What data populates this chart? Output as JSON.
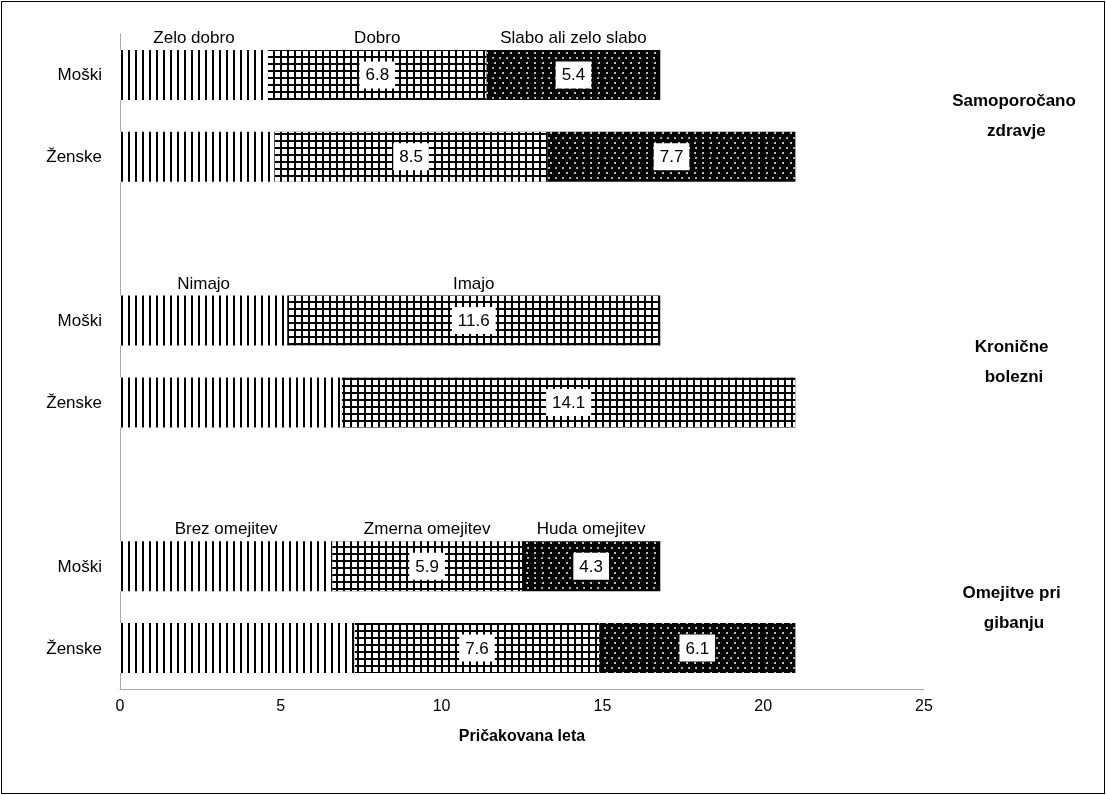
{
  "chart_data": {
    "type": "bar",
    "orientation": "horizontal",
    "stacked": true,
    "xlabel": "Pričakovana leta",
    "categories": [
      "Moški",
      "Ženske",
      null,
      "Moški",
      "Ženske",
      null,
      "Moški",
      "Ženske"
    ],
    "xlim": [
      0,
      25
    ],
    "xticks": [
      0,
      5,
      10,
      15,
      20,
      25
    ],
    "grid": false,
    "legend": false,
    "annotations": [
      "Samoporočano zdravje",
      "Kronične bolezni",
      "Omejitve pri gibanju"
    ],
    "series": [
      {
        "name": "Zelo dobro",
        "color": "#ffffff",
        "values": [
          4.6,
          4.8,
          null,
          null,
          null,
          null,
          null,
          null
        ]
      },
      {
        "name": "Dobro",
        "color": "#000000",
        "values": [
          6.8,
          8.5,
          null,
          null,
          null,
          null,
          null,
          null
        ],
        "value_labels": [
          "6.8",
          "8.5",
          null,
          null,
          null,
          null,
          null,
          null
        ]
      },
      {
        "name": "Slabo ali zelo slabo",
        "color": "#000000",
        "values": [
          5.4,
          7.7,
          null,
          null,
          null,
          null,
          null,
          null
        ],
        "value_labels": [
          "5.4",
          "7.7",
          null,
          null,
          null,
          null,
          null,
          null
        ]
      },
      {
        "name": "Nimajo",
        "color": "#ffffff",
        "values": [
          null,
          null,
          null,
          5.2,
          6.9,
          null,
          null,
          null
        ]
      },
      {
        "name": "Imajo",
        "color": "#000000",
        "values": [
          null,
          null,
          null,
          11.6,
          14.1,
          null,
          null,
          null
        ],
        "value_labels": [
          null,
          null,
          null,
          "11.6",
          "14.1",
          null,
          null,
          null
        ]
      },
      {
        "name": "Brez omejitev",
        "color": "#ffffff",
        "values": [
          null,
          null,
          null,
          null,
          null,
          null,
          6.6,
          7.3
        ]
      },
      {
        "name": "Zmerna omejitev",
        "color": "#000000",
        "values": [
          null,
          null,
          null,
          null,
          null,
          null,
          5.9,
          7.6
        ],
        "value_labels": [
          null,
          null,
          null,
          null,
          null,
          null,
          "5.9",
          "7.6"
        ]
      },
      {
        "name": "Huda omejitev",
        "color": "#000000",
        "values": [
          null,
          null,
          null,
          null,
          null,
          null,
          4.3,
          6.1
        ],
        "value_labels": [
          null,
          null,
          null,
          null,
          null,
          null,
          "4.3",
          "6.1"
        ]
      }
    ]
  }
}
